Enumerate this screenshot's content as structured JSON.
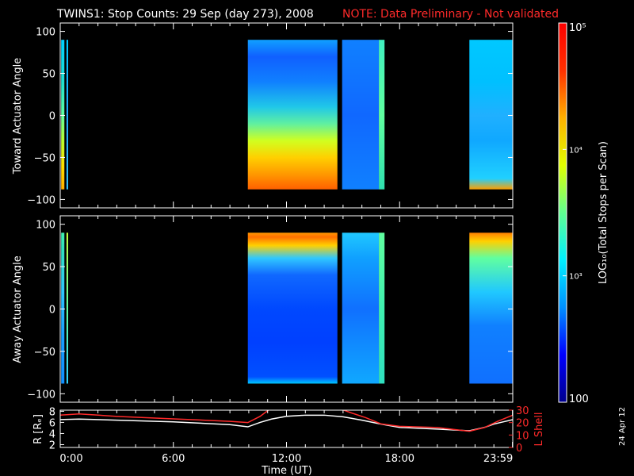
{
  "header": {
    "title": "TWINS1: Stop Counts: 29 Sep (day 273), 2008",
    "note": "NOTE: Data Preliminary - Not validated"
  },
  "side_date": "24 Apr 12",
  "colors": {
    "background": "#000000",
    "foreground": "#ffffff",
    "note_red": "#ff2a2a",
    "lshell_line": "#ff2a2a",
    "r_line": "#ffffff"
  },
  "chart_data": [
    {
      "type": "heatmap",
      "id": "toward",
      "ylabel": "Toward Actuator Angle",
      "ylim": [
        -110,
        110
      ],
      "yticks": [
        -100,
        -50,
        0,
        50,
        100
      ],
      "xlim": [
        0,
        24
      ],
      "x_unit": "hours UT",
      "scale": "log",
      "data_blocks": [
        {
          "x0": 0.05,
          "x1": 0.22,
          "profile": [
            [
              -88,
              "#ffb000"
            ],
            [
              -60,
              "#ffe000"
            ],
            [
              -30,
              "#b8ff30"
            ],
            [
              0,
              "#60ffa0"
            ],
            [
              40,
              "#20e0d0"
            ],
            [
              90,
              "#00d0ff"
            ]
          ]
        },
        {
          "x0": 0.33,
          "x1": 0.42,
          "profile": [
            [
              -88,
              "#30c0ff"
            ],
            [
              0,
              "#20a8ff"
            ],
            [
              90,
              "#00c8ff"
            ]
          ]
        },
        {
          "x0": 9.95,
          "x1": 14.7,
          "profile": [
            [
              -88,
              "#ff6000"
            ],
            [
              -70,
              "#ff9800"
            ],
            [
              -50,
              "#ffd000"
            ],
            [
              -30,
              "#d0ff20"
            ],
            [
              -10,
              "#60f0a0"
            ],
            [
              10,
              "#20c8e8"
            ],
            [
              40,
              "#1080ff"
            ],
            [
              70,
              "#1060ff"
            ],
            [
              90,
              "#10a0ff"
            ]
          ]
        },
        {
          "x0": 14.95,
          "x1": 16.9,
          "profile": [
            [
              -88,
              "#1080ff"
            ],
            [
              0,
              "#1068ff"
            ],
            [
              90,
              "#1080ff"
            ]
          ]
        },
        {
          "x0": 16.9,
          "x1": 17.2,
          "profile": [
            [
              -88,
              "#30e0b0"
            ],
            [
              0,
              "#60ffa0"
            ],
            [
              90,
              "#40f0c0"
            ]
          ]
        },
        {
          "x0": 21.7,
          "x1": 24.0,
          "profile": [
            [
              -88,
              "#ffa000"
            ],
            [
              -75,
              "#20d0ff"
            ],
            [
              -30,
              "#10a8ff"
            ],
            [
              0,
              "#20b0ff"
            ],
            [
              40,
              "#00c0ff"
            ],
            [
              90,
              "#00c8ff"
            ]
          ]
        }
      ]
    },
    {
      "type": "heatmap",
      "id": "away",
      "ylabel": "Away Actuator Angle",
      "ylim": [
        -110,
        110
      ],
      "yticks": [
        -100,
        -50,
        0,
        50,
        100
      ],
      "xlim": [
        0,
        24
      ],
      "x_unit": "hours UT",
      "scale": "log",
      "data_blocks": [
        {
          "x0": 0.05,
          "x1": 0.22,
          "profile": [
            [
              -88,
              "#1090ff"
            ],
            [
              -30,
              "#1aa0ff"
            ],
            [
              20,
              "#30c8ff"
            ],
            [
              70,
              "#30e0c0"
            ],
            [
              90,
              "#40f0b0"
            ]
          ]
        },
        {
          "x0": 0.33,
          "x1": 0.42,
          "profile": [
            [
              -88,
              "#30d0ff"
            ],
            [
              0,
              "#60ffa0"
            ],
            [
              90,
              "#c0ff40"
            ]
          ]
        },
        {
          "x0": 9.95,
          "x1": 14.7,
          "profile": [
            [
              -88,
              "#00c8ff"
            ],
            [
              -80,
              "#0050ff"
            ],
            [
              -40,
              "#0040ff"
            ],
            [
              0,
              "#0048ff"
            ],
            [
              40,
              "#1068ff"
            ],
            [
              60,
              "#30c8ff"
            ],
            [
              75,
              "#ffd000"
            ],
            [
              85,
              "#ff7000"
            ],
            [
              90,
              "#ff9800"
            ]
          ]
        },
        {
          "x0": 14.95,
          "x1": 16.9,
          "profile": [
            [
              -88,
              "#10a8ff"
            ],
            [
              0,
              "#1070ff"
            ],
            [
              60,
              "#10a0ff"
            ],
            [
              90,
              "#20c8ff"
            ]
          ]
        },
        {
          "x0": 16.9,
          "x1": 17.2,
          "profile": [
            [
              -88,
              "#30e0c0"
            ],
            [
              0,
              "#40f0b0"
            ],
            [
              90,
              "#60ffa0"
            ]
          ]
        },
        {
          "x0": 21.7,
          "x1": 24.0,
          "profile": [
            [
              -88,
              "#1070ff"
            ],
            [
              -20,
              "#1080ff"
            ],
            [
              20,
              "#20c8ff"
            ],
            [
              60,
              "#60ffa0"
            ],
            [
              80,
              "#ffd000"
            ],
            [
              90,
              "#ff8000"
            ]
          ]
        }
      ]
    },
    {
      "type": "line",
      "id": "ephemeris",
      "xlabel": "Time (UT)",
      "xlim": [
        0,
        24
      ],
      "xticks": [
        0,
        6,
        12,
        18,
        23.983
      ],
      "xtick_labels": [
        "0:00",
        "6:00",
        "12:00",
        "18:00",
        "23:59"
      ],
      "left_axis": {
        "label": "R [Rₑ]",
        "ylim": [
          1.5,
          8.2
        ],
        "yticks": [
          2,
          4,
          6,
          8
        ]
      },
      "right_axis": {
        "label": "L Shell",
        "ylim": [
          0,
          30
        ],
        "yticks": [
          0,
          10,
          20,
          30
        ]
      },
      "series": [
        {
          "axis": "left",
          "color": "#ffffff",
          "x": [
            0,
            1,
            3,
            6,
            9,
            9.95,
            10.6,
            11.2,
            12,
            13,
            14,
            15,
            16,
            17,
            18,
            20,
            21.7,
            22.5,
            23,
            24
          ],
          "y": [
            6.5,
            6.6,
            6.4,
            6.1,
            5.6,
            5.2,
            6.0,
            6.6,
            7.1,
            7.3,
            7.3,
            7.0,
            6.4,
            5.7,
            5.1,
            4.8,
            4.5,
            5.1,
            5.7,
            6.5
          ]
        },
        {
          "axis": "right",
          "color": "#ff2a2a",
          "x": [
            0,
            1,
            3,
            6,
            9,
            9.95,
            10.6,
            11.3,
            14.5,
            15.4,
            16.2,
            17.0,
            18.0,
            20.0,
            21.7,
            22.5,
            23.2,
            24.0
          ],
          "y": [
            26,
            27,
            25,
            23,
            21,
            20,
            25,
            33,
            33,
            28,
            24,
            19,
            17,
            16,
            13,
            16,
            21,
            26
          ]
        }
      ]
    }
  ],
  "colorbar": {
    "label": "LOG₁₀(Total Stops per Scan)",
    "min": 100,
    "max": 100000,
    "ticks": [
      {
        "label": "10⁵",
        "value": 100000
      },
      {
        "label": "10⁴",
        "value": 10000
      },
      {
        "label": "10³",
        "value": 1000
      },
      {
        "label": "100",
        "value": 100
      }
    ],
    "colors": [
      "#00008c",
      "#0000ff",
      "#0090ff",
      "#00f0ff",
      "#60ff90",
      "#e0ff00",
      "#ffb000",
      "#ff3000",
      "#ff0000"
    ]
  }
}
